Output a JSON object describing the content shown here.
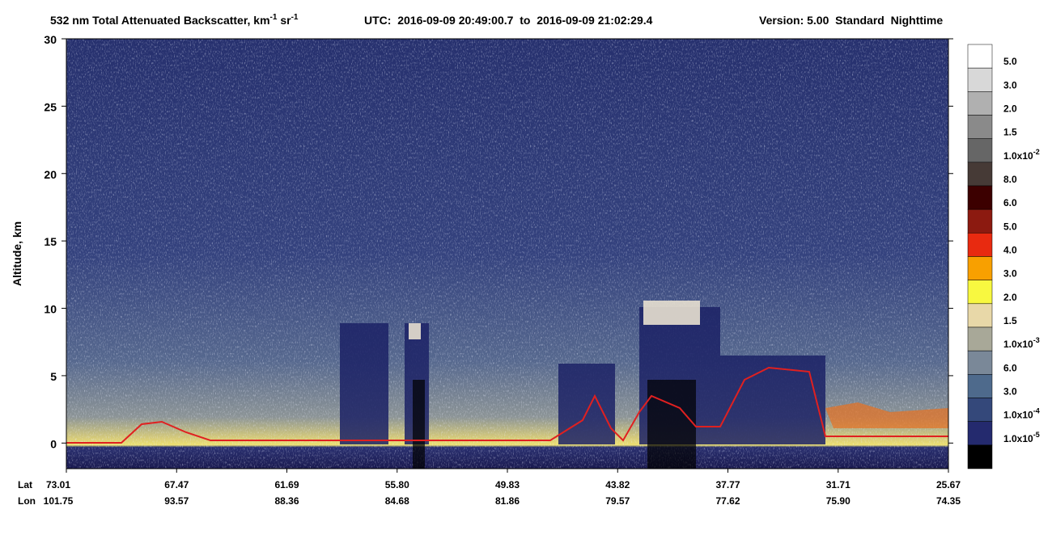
{
  "chart_data": {
    "type": "heatmap",
    "title_parts": [
      {
        "text": "532 nm Total Attenuated Backscatter, km"
      },
      {
        "sup": "-1"
      },
      {
        "text": " sr"
      },
      {
        "sup": "-1"
      }
    ],
    "time_range": "UTC:  2016-09-09 20:49:00.7  to  2016-09-09 21:02:29.4",
    "version": "Version: 5.00  Standard  Nighttime",
    "y_label": "Altitude, km",
    "ylim": [
      -1.9,
      30
    ],
    "yticks": [
      0,
      5,
      10,
      15,
      20,
      25,
      30
    ],
    "x_row_labels": [
      "Lat",
      "Lon"
    ],
    "lat_labels": [
      "73.01",
      "67.47",
      "61.69",
      "55.80",
      "49.83",
      "43.82",
      "37.77",
      "31.71",
      "25.67"
    ],
    "lon_labels": [
      "101.75",
      "93.57",
      "88.36",
      "84.68",
      "81.86",
      "79.57",
      "77.62",
      "75.90",
      "74.35"
    ],
    "colorbar": [
      {
        "color": "#ffffff",
        "label": "5.0"
      },
      {
        "color": "#d8d8d8",
        "label": "3.0"
      },
      {
        "color": "#b0b0b0",
        "label": "2.0"
      },
      {
        "color": "#8a8a8a",
        "label": "1.5"
      },
      {
        "color": "#666666",
        "label": "1.0x10",
        "label_sup": "-2"
      },
      {
        "color": "#463a36",
        "label": "8.0"
      },
      {
        "color": "#3c0000",
        "label": "6.0"
      },
      {
        "color": "#8c1a10",
        "label": "5.0"
      },
      {
        "color": "#e82a10",
        "label": "4.0"
      },
      {
        "color": "#f8a000",
        "label": "3.0"
      },
      {
        "color": "#f8f840",
        "label": "2.0"
      },
      {
        "color": "#e8d8a8",
        "label": "1.5"
      },
      {
        "color": "#a8a898",
        "label": "1.0x10",
        "label_sup": "-3"
      },
      {
        "color": "#7a8898",
        "label": "6.0"
      },
      {
        "color": "#4e6a8c",
        "label": "3.0"
      },
      {
        "color": "#34487a",
        "label": "1.0x10",
        "label_sup": "-4"
      },
      {
        "color": "#242a6e",
        "label": "1.0x10",
        "label_sup": "-5"
      },
      {
        "color": "#000000"
      }
    ]
  }
}
